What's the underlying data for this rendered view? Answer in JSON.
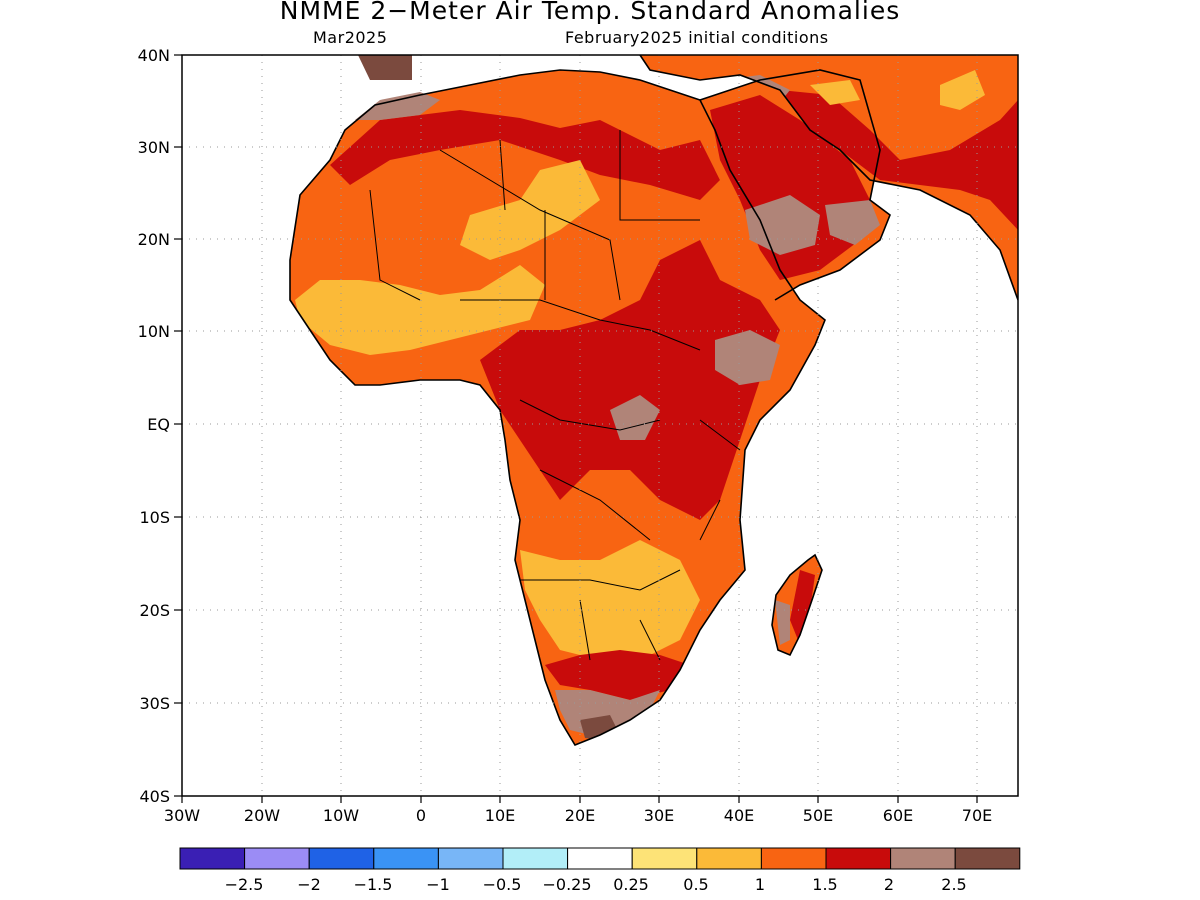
{
  "title": "NMME 2−Meter Air Temp. Standard Anomalies",
  "subtitle_left": "Mar2025",
  "subtitle_right": "February2025 initial conditions",
  "lat_labels": [
    "40N",
    "30N",
    "20N",
    "10N",
    "EQ",
    "10S",
    "20S",
    "30S",
    "40S"
  ],
  "lon_labels": [
    "30W",
    "20W",
    "10W",
    "0",
    "10E",
    "20E",
    "30E",
    "40E",
    "50E",
    "60E",
    "70E"
  ],
  "legend": {
    "colors": [
      "#3a1fb4",
      "#9b8cf5",
      "#1f62e6",
      "#3a93f5",
      "#78b6f7",
      "#b2eef8",
      "#ffffff",
      "#fde377",
      "#fbba38",
      "#f86412",
      "#c80b0b",
      "#b08478",
      "#7b4a3e"
    ],
    "labels": [
      "−2.5",
      "−2",
      "−1.5",
      "−1",
      "−0.5",
      "−0.25",
      "0.25",
      "0.5",
      "1",
      "1.5",
      "2",
      "2.5"
    ]
  },
  "colors": {
    "c05": "#fde377",
    "c1": "#fbba38",
    "c15": "#f86412",
    "c2": "#c80b0b",
    "c25": "#b08478",
    "c3": "#7b4a3e"
  }
}
